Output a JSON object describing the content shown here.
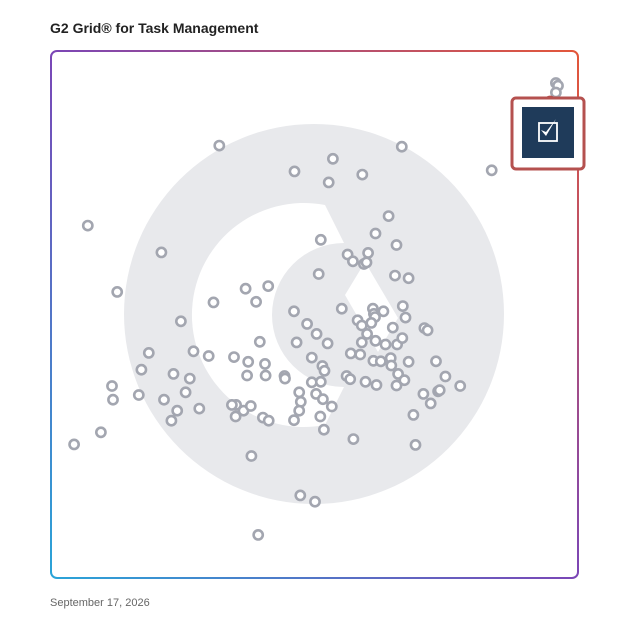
{
  "title": "G2 Grid® for Task Management",
  "date_label": "September 17, 2026",
  "colors": {
    "dot": "#a3a6b0",
    "highlight_border": "#b5514f",
    "highlight_tile": "#1f3b5a",
    "watermark": "#e8e9ec",
    "frame_gradient": [
      "#2aa4d8",
      "#7b46b6",
      "#e3573a"
    ]
  },
  "highlight_icon": "smartsheet-logo-icon",
  "chart_data": {
    "type": "scatter",
    "title": "G2 Grid® for Task Management",
    "xlabel": "",
    "ylabel": "",
    "xlim": [
      0,
      1
    ],
    "ylim": [
      0,
      1
    ],
    "quadrant_split": [
      0.5,
      0.5
    ],
    "grid": true,
    "highlighted_point": {
      "x": 0.947,
      "y": 0.905
    },
    "points": [
      [
        0.958,
        0.941
      ],
      [
        0.962,
        0.936
      ],
      [
        0.958,
        0.923
      ],
      [
        0.947,
        0.905
      ],
      [
        0.665,
        0.82
      ],
      [
        0.836,
        0.775
      ],
      [
        0.318,
        0.822
      ],
      [
        0.534,
        0.797
      ],
      [
        0.461,
        0.773
      ],
      [
        0.59,
        0.767
      ],
      [
        0.526,
        0.752
      ],
      [
        0.068,
        0.67
      ],
      [
        0.208,
        0.619
      ],
      [
        0.124,
        0.544
      ],
      [
        0.307,
        0.524
      ],
      [
        0.411,
        0.555
      ],
      [
        0.64,
        0.688
      ],
      [
        0.511,
        0.643
      ],
      [
        0.615,
        0.655
      ],
      [
        0.601,
        0.618
      ],
      [
        0.655,
        0.633
      ],
      [
        0.562,
        0.615
      ],
      [
        0.572,
        0.602
      ],
      [
        0.593,
        0.597
      ],
      [
        0.598,
        0.6
      ],
      [
        0.507,
        0.578
      ],
      [
        0.652,
        0.575
      ],
      [
        0.678,
        0.57
      ],
      [
        0.368,
        0.55
      ],
      [
        0.388,
        0.525
      ],
      [
        0.551,
        0.512
      ],
      [
        0.61,
        0.512
      ],
      [
        0.612,
        0.502
      ],
      [
        0.614,
        0.496
      ],
      [
        0.63,
        0.507
      ],
      [
        0.667,
        0.517
      ],
      [
        0.672,
        0.495
      ],
      [
        0.46,
        0.507
      ],
      [
        0.581,
        0.49
      ],
      [
        0.589,
        0.48
      ],
      [
        0.607,
        0.485
      ],
      [
        0.648,
        0.476
      ],
      [
        0.599,
        0.464
      ],
      [
        0.615,
        0.451
      ],
      [
        0.589,
        0.448
      ],
      [
        0.708,
        0.475
      ],
      [
        0.714,
        0.471
      ],
      [
        0.485,
        0.483
      ],
      [
        0.503,
        0.464
      ],
      [
        0.245,
        0.488
      ],
      [
        0.395,
        0.449
      ],
      [
        0.465,
        0.448
      ],
      [
        0.524,
        0.446
      ],
      [
        0.634,
        0.444
      ],
      [
        0.656,
        0.444
      ],
      [
        0.666,
        0.456
      ],
      [
        0.586,
        0.425
      ],
      [
        0.568,
        0.427
      ],
      [
        0.611,
        0.413
      ],
      [
        0.625,
        0.412
      ],
      [
        0.644,
        0.418
      ],
      [
        0.645,
        0.404
      ],
      [
        0.658,
        0.388
      ],
      [
        0.678,
        0.411
      ],
      [
        0.73,
        0.412
      ],
      [
        0.748,
        0.383
      ],
      [
        0.494,
        0.419
      ],
      [
        0.514,
        0.403
      ],
      [
        0.373,
        0.411
      ],
      [
        0.405,
        0.407
      ],
      [
        0.298,
        0.422
      ],
      [
        0.184,
        0.428
      ],
      [
        0.269,
        0.431
      ],
      [
        0.346,
        0.42
      ],
      [
        0.371,
        0.385
      ],
      [
        0.406,
        0.385
      ],
      [
        0.442,
        0.384
      ],
      [
        0.443,
        0.379
      ],
      [
        0.518,
        0.394
      ],
      [
        0.494,
        0.372
      ],
      [
        0.511,
        0.373
      ],
      [
        0.262,
        0.379
      ],
      [
        0.231,
        0.388
      ],
      [
        0.17,
        0.396
      ],
      [
        0.114,
        0.365
      ],
      [
        0.56,
        0.384
      ],
      [
        0.567,
        0.378
      ],
      [
        0.596,
        0.373
      ],
      [
        0.617,
        0.367
      ],
      [
        0.655,
        0.366
      ],
      [
        0.67,
        0.376
      ],
      [
        0.706,
        0.35
      ],
      [
        0.734,
        0.355
      ],
      [
        0.737,
        0.357
      ],
      [
        0.776,
        0.365
      ],
      [
        0.72,
        0.332
      ],
      [
        0.116,
        0.339
      ],
      [
        0.165,
        0.348
      ],
      [
        0.213,
        0.339
      ],
      [
        0.254,
        0.353
      ],
      [
        0.28,
        0.322
      ],
      [
        0.35,
        0.329
      ],
      [
        0.47,
        0.353
      ],
      [
        0.502,
        0.35
      ],
      [
        0.515,
        0.34
      ],
      [
        0.473,
        0.335
      ],
      [
        0.47,
        0.318
      ],
      [
        0.532,
        0.326
      ],
      [
        0.238,
        0.318
      ],
      [
        0.349,
        0.307
      ],
      [
        0.342,
        0.329
      ],
      [
        0.364,
        0.318
      ],
      [
        0.378,
        0.327
      ],
      [
        0.227,
        0.299
      ],
      [
        0.401,
        0.305
      ],
      [
        0.412,
        0.299
      ],
      [
        0.46,
        0.3
      ],
      [
        0.51,
        0.307
      ],
      [
        0.517,
        0.282
      ],
      [
        0.687,
        0.31
      ],
      [
        0.093,
        0.277
      ],
      [
        0.042,
        0.254
      ],
      [
        0.573,
        0.264
      ],
      [
        0.691,
        0.253
      ],
      [
        0.379,
        0.232
      ],
      [
        0.472,
        0.157
      ],
      [
        0.5,
        0.145
      ],
      [
        0.392,
        0.082
      ]
    ]
  }
}
